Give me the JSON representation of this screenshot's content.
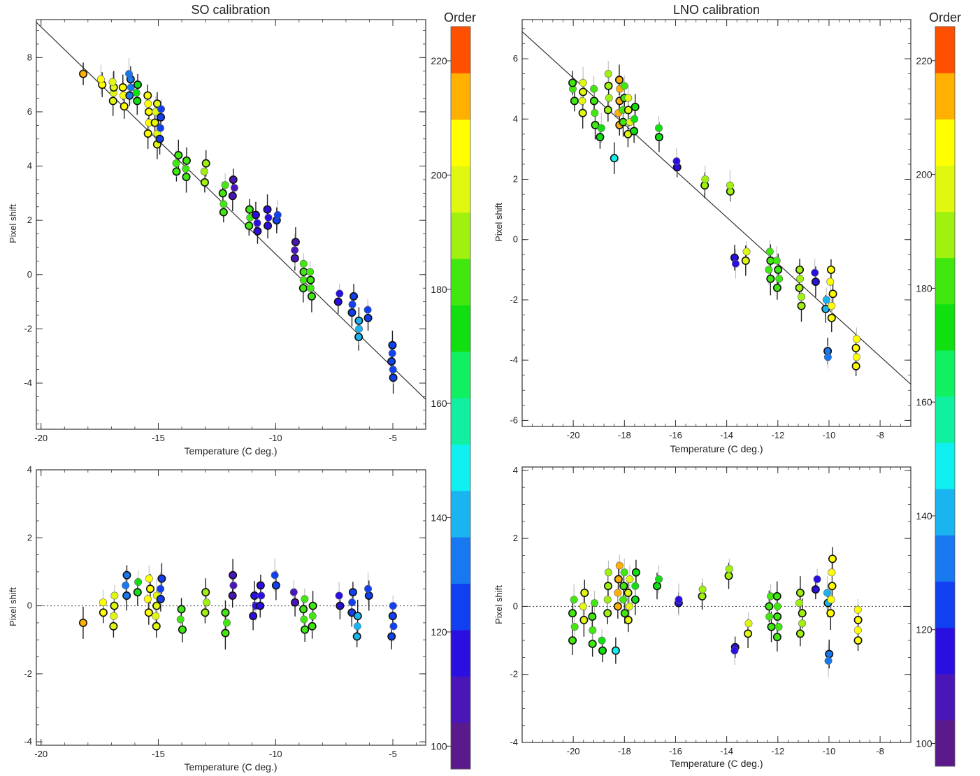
{
  "chart_data": [
    {
      "type": "scatter",
      "title": "SO calibration",
      "xlabel": "Temperature (C deg.)",
      "ylabel": "Pixel shift",
      "xlim": [
        -20.2,
        -3.6
      ],
      "ylim": [
        -5.7,
        9.4
      ],
      "xticks": [
        -20,
        -15,
        -10,
        -5
      ],
      "yticks": [
        -4,
        -2,
        0,
        2,
        4,
        6,
        8
      ],
      "fit_line": {
        "x": [
          -20.2,
          -3.6
        ],
        "y": [
          9.3,
          -4.6
        ]
      },
      "clusters": [
        {
          "x": -18.2,
          "y": [
            7.4
          ],
          "order": 212
        },
        {
          "x": -17.4,
          "y": [
            7.0,
            7.2
          ],
          "order": 203
        },
        {
          "x": -16.9,
          "y": [
            6.4,
            6.7,
            6.9,
            7.1
          ],
          "order": 201
        },
        {
          "x": -16.5,
          "y": [
            6.2,
            6.6,
            6.9
          ],
          "order": 205
        },
        {
          "x": -16.2,
          "y": [
            6.6,
            6.9,
            7.2,
            7.4
          ],
          "order": 135
        },
        {
          "x": -15.9,
          "y": [
            6.4,
            6.7,
            7.0
          ],
          "order": 170
        },
        {
          "x": -15.4,
          "y": [
            5.2,
            5.6,
            6.0,
            6.3,
            6.6
          ],
          "order": 205
        },
        {
          "x": -15.1,
          "y": [
            4.8,
            5.2,
            5.6,
            6.0,
            6.3
          ],
          "order": 201
        },
        {
          "x": -14.9,
          "y": [
            5.0,
            5.4,
            5.8,
            6.1
          ],
          "order": 125
        },
        {
          "x": -14.2,
          "y": [
            3.8,
            4.1,
            4.4
          ],
          "order": 182
        },
        {
          "x": -13.8,
          "y": [
            3.6,
            3.9,
            4.2
          ],
          "order": 180
        },
        {
          "x": -13.0,
          "y": [
            3.4,
            3.8,
            4.1
          ],
          "order": 188
        },
        {
          "x": -12.2,
          "y": [
            2.3,
            2.6,
            3.0,
            3.3
          ],
          "order": 182
        },
        {
          "x": -11.8,
          "y": [
            2.9,
            3.2,
            3.5
          ],
          "order": 112
        },
        {
          "x": -11.1,
          "y": [
            1.8,
            2.1,
            2.4
          ],
          "order": 182
        },
        {
          "x": -10.8,
          "y": [
            1.6,
            1.9,
            2.2
          ],
          "order": 118
        },
        {
          "x": -10.3,
          "y": [
            1.8,
            2.1,
            2.4
          ],
          "order": 120
        },
        {
          "x": -9.9,
          "y": [
            2.0,
            2.2
          ],
          "order": 125
        },
        {
          "x": -9.2,
          "y": [
            0.6,
            0.9,
            1.2
          ],
          "order": 110
        },
        {
          "x": -8.8,
          "y": [
            -0.5,
            -0.2,
            0.1,
            0.4
          ],
          "order": 185
        },
        {
          "x": -8.5,
          "y": [
            -0.8,
            -0.5,
            -0.2,
            0.1
          ],
          "order": 180
        },
        {
          "x": -7.3,
          "y": [
            -1.0,
            -0.7
          ],
          "order": 118
        },
        {
          "x": -6.7,
          "y": [
            -1.4,
            -1.1,
            -0.8
          ],
          "order": 122
        },
        {
          "x": -6.5,
          "y": [
            -2.3,
            -2.0,
            -1.7
          ],
          "order": 138
        },
        {
          "x": -6.1,
          "y": [
            -1.6,
            -1.3
          ],
          "order": 128
        },
        {
          "x": -5.0,
          "y": [
            -3.8,
            -3.5,
            -3.2,
            -2.9,
            -2.6
          ],
          "order": 125
        }
      ],
      "residuals": {
        "title": "",
        "xlabel": "Temperature (C deg.)",
        "ylabel": "Pixel shift",
        "xlim": [
          -20.2,
          -3.6
        ],
        "ylim": [
          -4.1,
          4.0
        ],
        "xticks": [
          -20,
          -15,
          -10,
          -5
        ],
        "yticks": [
          -4,
          -2,
          0,
          2,
          4
        ],
        "clusters": [
          {
            "x": -18.2,
            "y": [
              -0.5
            ],
            "order": 212
          },
          {
            "x": -17.4,
            "y": [
              -0.2,
              0.1
            ],
            "order": 203
          },
          {
            "x": -16.9,
            "y": [
              -0.6,
              -0.3,
              0.0,
              0.3
            ],
            "order": 201
          },
          {
            "x": -16.4,
            "y": [
              0.3,
              0.6,
              0.9
            ],
            "order": 135
          },
          {
            "x": -15.9,
            "y": [
              0.4,
              0.7
            ],
            "order": 170
          },
          {
            "x": -15.4,
            "y": [
              -0.2,
              0.2,
              0.5,
              0.8
            ],
            "order": 205
          },
          {
            "x": -15.1,
            "y": [
              -0.6,
              -0.3,
              0.0,
              0.3
            ],
            "order": 201
          },
          {
            "x": -14.9,
            "y": [
              0.2,
              0.5,
              0.8
            ],
            "order": 125
          },
          {
            "x": -14.0,
            "y": [
              -0.7,
              -0.4,
              -0.1
            ],
            "order": 182
          },
          {
            "x": -13.0,
            "y": [
              -0.2,
              0.1,
              0.4
            ],
            "order": 188
          },
          {
            "x": -12.1,
            "y": [
              -0.8,
              -0.5,
              -0.2
            ],
            "order": 182
          },
          {
            "x": -11.8,
            "y": [
              0.3,
              0.6,
              0.9
            ],
            "order": 112
          },
          {
            "x": -10.9,
            "y": [
              -0.3,
              0.0,
              0.3
            ],
            "order": 118
          },
          {
            "x": -10.6,
            "y": [
              0.0,
              0.3,
              0.6
            ],
            "order": 120
          },
          {
            "x": -10.0,
            "y": [
              0.6,
              0.9
            ],
            "order": 125
          },
          {
            "x": -9.2,
            "y": [
              0.1,
              0.4
            ],
            "order": 110
          },
          {
            "x": -8.8,
            "y": [
              -0.7,
              -0.4,
              -0.1,
              0.2
            ],
            "order": 185
          },
          {
            "x": -8.4,
            "y": [
              -0.6,
              -0.3,
              0.0
            ],
            "order": 180
          },
          {
            "x": -7.3,
            "y": [
              0.0,
              0.3
            ],
            "order": 118
          },
          {
            "x": -6.7,
            "y": [
              -0.2,
              0.1,
              0.4
            ],
            "order": 122
          },
          {
            "x": -6.5,
            "y": [
              -0.9,
              -0.6,
              -0.3
            ],
            "order": 138
          },
          {
            "x": -6.0,
            "y": [
              0.3,
              0.5
            ],
            "order": 128
          },
          {
            "x": -5.0,
            "y": [
              -0.9,
              -0.6,
              -0.3,
              0.0
            ],
            "order": 125
          }
        ]
      }
    },
    {
      "type": "scatter",
      "title": "LNO calibration",
      "xlabel": "Temperature (C deg.)",
      "ylabel": "Pixel shift",
      "xlim": [
        -22.0,
        -6.8
      ],
      "ylim": [
        -6.2,
        7.3
      ],
      "xticks": [
        -20,
        -18,
        -16,
        -14,
        -12,
        -10,
        -8
      ],
      "yticks": [
        -6,
        -4,
        -2,
        0,
        2,
        4,
        6
      ],
      "fit_line": {
        "x": [
          -22.0,
          -6.8
        ],
        "y": [
          6.9,
          -4.8
        ]
      },
      "clusters": [
        {
          "x": -20.0,
          "y": [
            4.6,
            5.0,
            5.2
          ],
          "order": 185
        },
        {
          "x": -19.6,
          "y": [
            4.2,
            4.6,
            4.9,
            5.2
          ],
          "order": 195
        },
        {
          "x": -19.2,
          "y": [
            3.8,
            4.2,
            4.6,
            5.0
          ],
          "order": 180
        },
        {
          "x": -18.9,
          "y": [
            3.4,
            3.7
          ],
          "order": 170
        },
        {
          "x": -18.6,
          "y": [
            4.3,
            4.7,
            5.1,
            5.5
          ],
          "order": 190
        },
        {
          "x": -18.4,
          "y": [
            2.7
          ],
          "order": 145
        },
        {
          "x": -18.2,
          "y": [
            3.8,
            4.2,
            4.6,
            5.0,
            5.3
          ],
          "order": 215
        },
        {
          "x": -18.0,
          "y": [
            3.9,
            4.3,
            4.7,
            5.1
          ],
          "order": 180
        },
        {
          "x": -17.8,
          "y": [
            3.5,
            3.9,
            4.3,
            4.7
          ],
          "order": 200
        },
        {
          "x": -17.6,
          "y": [
            3.6,
            4.0,
            4.4
          ],
          "order": 175
        },
        {
          "x": -16.7,
          "y": [
            3.4,
            3.7
          ],
          "order": 175
        },
        {
          "x": -15.9,
          "y": [
            2.4,
            2.6
          ],
          "order": 120
        },
        {
          "x": -14.9,
          "y": [
            1.8,
            2.0
          ],
          "order": 190
        },
        {
          "x": -13.9,
          "y": [
            1.6,
            1.8
          ],
          "order": 190
        },
        {
          "x": -13.7,
          "y": [
            -0.6,
            -0.8
          ],
          "order": 120
        },
        {
          "x": -13.2,
          "y": [
            -0.7,
            -0.4
          ],
          "order": 200
        },
        {
          "x": -12.3,
          "y": [
            -1.3,
            -1.0,
            -0.7,
            -0.4
          ],
          "order": 185
        },
        {
          "x": -12.0,
          "y": [
            -1.6,
            -1.3,
            -1.0,
            -0.7
          ],
          "order": 180
        },
        {
          "x": -11.1,
          "y": [
            -2.2,
            -1.9,
            -1.6,
            -1.3,
            -1.0
          ],
          "order": 190
        },
        {
          "x": -10.5,
          "y": [
            -1.4,
            -1.1
          ],
          "order": 120
        },
        {
          "x": -10.1,
          "y": [
            -2.3,
            -2.0
          ],
          "order": 140
        },
        {
          "x": -9.9,
          "y": [
            -2.6,
            -2.2,
            -1.8,
            -1.4,
            -1.0
          ],
          "order": 205
        },
        {
          "x": -10.0,
          "y": [
            -3.7,
            -3.9
          ],
          "order": 135
        },
        {
          "x": -8.9,
          "y": [
            -4.2,
            -3.9,
            -3.6,
            -3.3
          ],
          "order": 205
        }
      ],
      "residuals": {
        "title": "",
        "xlabel": "Temperature (C deg.)",
        "ylabel": "Pixel shift",
        "xlim": [
          -22.0,
          -6.8
        ],
        "ylim": [
          -4.0,
          4.1
        ],
        "xticks": [
          -20,
          -18,
          -16,
          -14,
          -12,
          -10,
          -8
        ],
        "yticks": [
          -4,
          -2,
          0,
          2,
          4
        ],
        "clusters": [
          {
            "x": -20.0,
            "y": [
              -1.0,
              -0.6,
              -0.2,
              0.2
            ],
            "order": 185
          },
          {
            "x": -19.6,
            "y": [
              -0.4,
              0.0,
              0.4
            ],
            "order": 195
          },
          {
            "x": -19.2,
            "y": [
              -1.1,
              -0.7,
              -0.3,
              0.1
            ],
            "order": 180
          },
          {
            "x": -18.9,
            "y": [
              -1.3,
              -1.0
            ],
            "order": 170
          },
          {
            "x": -18.6,
            "y": [
              -0.2,
              0.2,
              0.6,
              1.0
            ],
            "order": 190
          },
          {
            "x": -18.4,
            "y": [
              -1.3
            ],
            "order": 145
          },
          {
            "x": -18.2,
            "y": [
              0.0,
              0.4,
              0.8,
              1.2
            ],
            "order": 215
          },
          {
            "x": -18.0,
            "y": [
              -0.2,
              0.2,
              0.6,
              1.0
            ],
            "order": 180
          },
          {
            "x": -17.8,
            "y": [
              -0.4,
              0.0,
              0.4,
              0.8
            ],
            "order": 200
          },
          {
            "x": -17.6,
            "y": [
              0.2,
              0.6,
              1.0
            ],
            "order": 175
          },
          {
            "x": -16.7,
            "y": [
              0.6,
              0.8
            ],
            "order": 175
          },
          {
            "x": -15.9,
            "y": [
              0.1,
              0.2
            ],
            "order": 120
          },
          {
            "x": -14.9,
            "y": [
              0.3,
              0.5
            ],
            "order": 190
          },
          {
            "x": -13.9,
            "y": [
              0.9,
              1.1
            ],
            "order": 190
          },
          {
            "x": -13.7,
            "y": [
              -1.2,
              -1.3
            ],
            "order": 120
          },
          {
            "x": -13.2,
            "y": [
              -0.8,
              -0.5
            ],
            "order": 200
          },
          {
            "x": -12.3,
            "y": [
              -0.6,
              -0.3,
              0.0,
              0.3
            ],
            "order": 185
          },
          {
            "x": -12.0,
            "y": [
              -0.9,
              -0.6,
              -0.3,
              0.0,
              0.3
            ],
            "order": 180
          },
          {
            "x": -11.1,
            "y": [
              -0.8,
              -0.5,
              -0.2,
              0.1,
              0.4
            ],
            "order": 190
          },
          {
            "x": -10.5,
            "y": [
              0.5,
              0.8
            ],
            "order": 120
          },
          {
            "x": -10.1,
            "y": [
              0.1,
              0.4
            ],
            "order": 140
          },
          {
            "x": -9.9,
            "y": [
              -0.2,
              0.2,
              0.6,
              1.0,
              1.4
            ],
            "order": 205
          },
          {
            "x": -10.0,
            "y": [
              -1.4,
              -1.6
            ],
            "order": 135
          },
          {
            "x": -8.9,
            "y": [
              -1.0,
              -0.7,
              -0.4,
              -0.1
            ],
            "order": 205
          }
        ]
      }
    }
  ],
  "colorbar": {
    "title": "Order",
    "range": [
      96,
      226
    ],
    "ticks": [
      100,
      120,
      140,
      160,
      180,
      200,
      220
    ],
    "bands": [
      "#5b1a8c",
      "#4a16b8",
      "#2a10e0",
      "#1040f0",
      "#1878f0",
      "#1ab4f0",
      "#10f0f0",
      "#10f0a0",
      "#10f060",
      "#10e010",
      "#40e810",
      "#a0f010",
      "#e0f810",
      "#ffff00",
      "#ffb000",
      "#ff5000"
    ]
  }
}
